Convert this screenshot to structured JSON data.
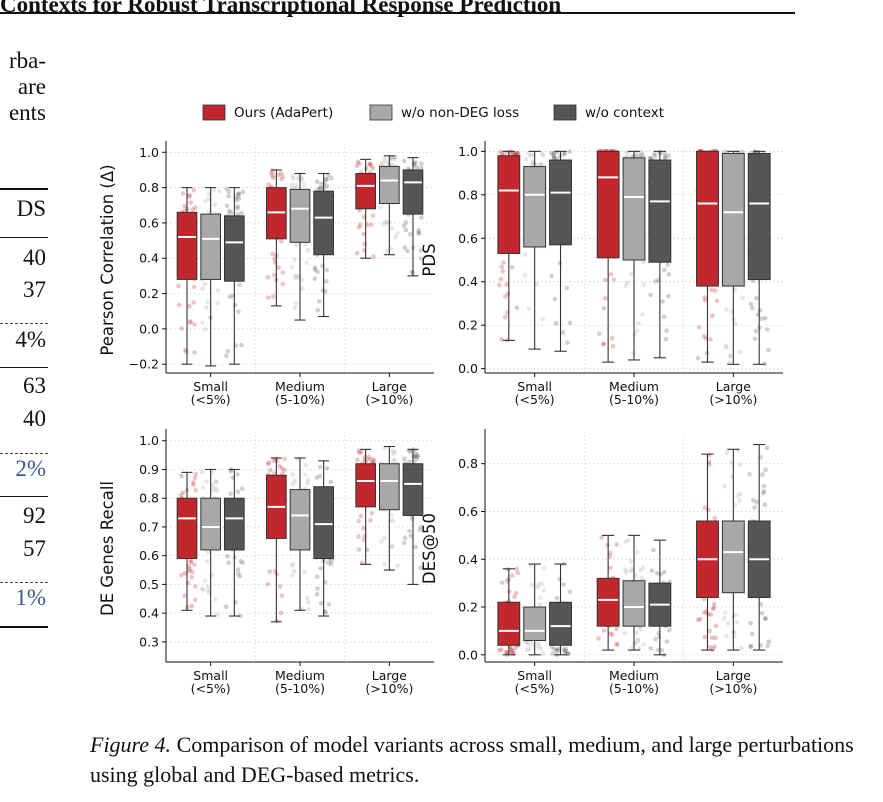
{
  "header": {
    "title": "Contexts for Robust Transcriptional Response Prediction"
  },
  "left_column": {
    "lines": [
      {
        "text": "rba-",
        "cls": ""
      },
      {
        "text": "are",
        "cls": ""
      },
      {
        "text": "ents",
        "cls": ""
      }
    ],
    "table_cells": [
      {
        "text": "DS",
        "cls": ""
      },
      {
        "text": "40",
        "cls": ""
      },
      {
        "text": "37",
        "cls": ""
      },
      {
        "text": "4%",
        "cls": ""
      },
      {
        "text": "63",
        "cls": ""
      },
      {
        "text": "40",
        "cls": ""
      },
      {
        "text": "2%",
        "cls": "blue"
      },
      {
        "text": "92",
        "cls": ""
      },
      {
        "text": "57",
        "cls": ""
      },
      {
        "text": "1%",
        "cls": "blue"
      }
    ]
  },
  "chart_data": {
    "type": "box",
    "legend": [
      {
        "name": "Ours (AdaPert)",
        "color": "#c1272d"
      },
      {
        "name": "w/o non-DEG loss",
        "color": "#a8a8a8"
      },
      {
        "name": "w/o context",
        "color": "#555555"
      }
    ],
    "legend_position": "top-center",
    "categories": [
      "Small\n(<5%)",
      "Medium\n(5-10%)",
      "Large\n(>10%)"
    ],
    "panels": [
      {
        "ylabel": "Pearson Correlation (Δ)",
        "ylim": [
          -0.25,
          1.03
        ],
        "yticks": [
          "−0.2",
          "0.0",
          "0.2",
          "0.4",
          "0.6",
          "0.8",
          "1.0"
        ],
        "ytick_values": [
          -0.2,
          0.0,
          0.2,
          0.4,
          0.6,
          0.8,
          1.0
        ],
        "boxes": [
          [
            {
              "min": -0.2,
              "q1": 0.28,
              "median": 0.52,
              "q3": 0.66,
              "max": 0.8
            },
            {
              "min": -0.21,
              "q1": 0.28,
              "median": 0.51,
              "q3": 0.65,
              "max": 0.8
            },
            {
              "min": -0.2,
              "q1": 0.27,
              "median": 0.49,
              "q3": 0.64,
              "max": 0.8
            }
          ],
          [
            {
              "min": 0.13,
              "q1": 0.51,
              "median": 0.66,
              "q3": 0.8,
              "max": 0.9
            },
            {
              "min": 0.05,
              "q1": 0.49,
              "median": 0.68,
              "q3": 0.79,
              "max": 0.88
            },
            {
              "min": 0.07,
              "q1": 0.42,
              "median": 0.63,
              "q3": 0.78,
              "max": 0.88
            }
          ],
          [
            {
              "min": 0.4,
              "q1": 0.68,
              "median": 0.81,
              "q3": 0.88,
              "max": 0.96
            },
            {
              "min": 0.42,
              "q1": 0.71,
              "median": 0.84,
              "q3": 0.92,
              "max": 0.98
            },
            {
              "min": 0.3,
              "q1": 0.65,
              "median": 0.83,
              "q3": 0.9,
              "max": 0.97
            }
          ]
        ]
      },
      {
        "ylabel": "PDS",
        "ylim": [
          -0.02,
          1.02
        ],
        "yticks": [
          "0.0",
          "0.2",
          "0.4",
          "0.6",
          "0.8",
          "1.0"
        ],
        "ytick_values": [
          0.0,
          0.2,
          0.4,
          0.6,
          0.8,
          1.0
        ],
        "boxes": [
          [
            {
              "min": 0.13,
              "q1": 0.53,
              "median": 0.82,
              "q3": 0.98,
              "max": 1.0
            },
            {
              "min": 0.09,
              "q1": 0.56,
              "median": 0.8,
              "q3": 0.93,
              "max": 1.0
            },
            {
              "min": 0.08,
              "q1": 0.57,
              "median": 0.81,
              "q3": 0.96,
              "max": 1.0
            }
          ],
          [
            {
              "min": 0.03,
              "q1": 0.51,
              "median": 0.88,
              "q3": 1.0,
              "max": 1.0
            },
            {
              "min": 0.04,
              "q1": 0.5,
              "median": 0.79,
              "q3": 0.97,
              "max": 1.0
            },
            {
              "min": 0.05,
              "q1": 0.49,
              "median": 0.77,
              "q3": 0.96,
              "max": 1.0
            }
          ],
          [
            {
              "min": 0.03,
              "q1": 0.38,
              "median": 0.76,
              "q3": 1.0,
              "max": 1.0
            },
            {
              "min": 0.02,
              "q1": 0.38,
              "median": 0.72,
              "q3": 0.99,
              "max": 1.0
            },
            {
              "min": 0.02,
              "q1": 0.41,
              "median": 0.76,
              "q3": 0.99,
              "max": 1.0
            }
          ]
        ]
      },
      {
        "ylabel": "DE Genes Recall",
        "ylim": [
          0.23,
          1.02
        ],
        "yticks": [
          "0.3",
          "0.4",
          "0.5",
          "0.6",
          "0.7",
          "0.8",
          "0.9",
          "1.0"
        ],
        "ytick_values": [
          0.3,
          0.4,
          0.5,
          0.6,
          0.7,
          0.8,
          0.9,
          1.0
        ],
        "boxes": [
          [
            {
              "min": 0.41,
              "q1": 0.59,
              "median": 0.73,
              "q3": 0.8,
              "max": 0.89
            },
            {
              "min": 0.39,
              "q1": 0.62,
              "median": 0.7,
              "q3": 0.8,
              "max": 0.9
            },
            {
              "min": 0.39,
              "q1": 0.62,
              "median": 0.73,
              "q3": 0.8,
              "max": 0.9
            }
          ],
          [
            {
              "min": 0.37,
              "q1": 0.66,
              "median": 0.77,
              "q3": 0.88,
              "max": 0.94
            },
            {
              "min": 0.41,
              "q1": 0.62,
              "median": 0.74,
              "q3": 0.83,
              "max": 0.94
            },
            {
              "min": 0.39,
              "q1": 0.59,
              "median": 0.71,
              "q3": 0.84,
              "max": 0.93
            }
          ],
          [
            {
              "min": 0.57,
              "q1": 0.77,
              "median": 0.86,
              "q3": 0.92,
              "max": 0.97
            },
            {
              "min": 0.55,
              "q1": 0.76,
              "median": 0.86,
              "q3": 0.92,
              "max": 0.98
            },
            {
              "min": 0.5,
              "q1": 0.74,
              "median": 0.85,
              "q3": 0.92,
              "max": 0.97
            }
          ]
        ]
      },
      {
        "ylabel": "DES@50",
        "ylim": [
          -0.03,
          0.92
        ],
        "yticks": [
          "0.0",
          "0.2",
          "0.4",
          "0.6",
          "0.8"
        ],
        "ytick_values": [
          0.0,
          0.2,
          0.4,
          0.6,
          0.8
        ],
        "boxes": [
          [
            {
              "min": 0.0,
              "q1": 0.04,
              "median": 0.1,
              "q3": 0.22,
              "max": 0.36
            },
            {
              "min": 0.0,
              "q1": 0.06,
              "median": 0.1,
              "q3": 0.2,
              "max": 0.38
            },
            {
              "min": 0.0,
              "q1": 0.04,
              "median": 0.12,
              "q3": 0.22,
              "max": 0.38
            }
          ],
          [
            {
              "min": 0.02,
              "q1": 0.12,
              "median": 0.23,
              "q3": 0.32,
              "max": 0.5
            },
            {
              "min": 0.02,
              "q1": 0.12,
              "median": 0.2,
              "q3": 0.31,
              "max": 0.5
            },
            {
              "min": 0.0,
              "q1": 0.12,
              "median": 0.21,
              "q3": 0.3,
              "max": 0.48
            }
          ],
          [
            {
              "min": 0.02,
              "q1": 0.24,
              "median": 0.4,
              "q3": 0.56,
              "max": 0.84
            },
            {
              "min": 0.02,
              "q1": 0.26,
              "median": 0.43,
              "q3": 0.56,
              "max": 0.86
            },
            {
              "min": 0.02,
              "q1": 0.24,
              "median": 0.4,
              "q3": 0.56,
              "max": 0.88
            }
          ]
        ]
      }
    ]
  },
  "caption": {
    "label": "Figure 4.",
    "text": "Comparison of model variants across small, medium, and large perturbations using global and DEG-based metrics."
  }
}
